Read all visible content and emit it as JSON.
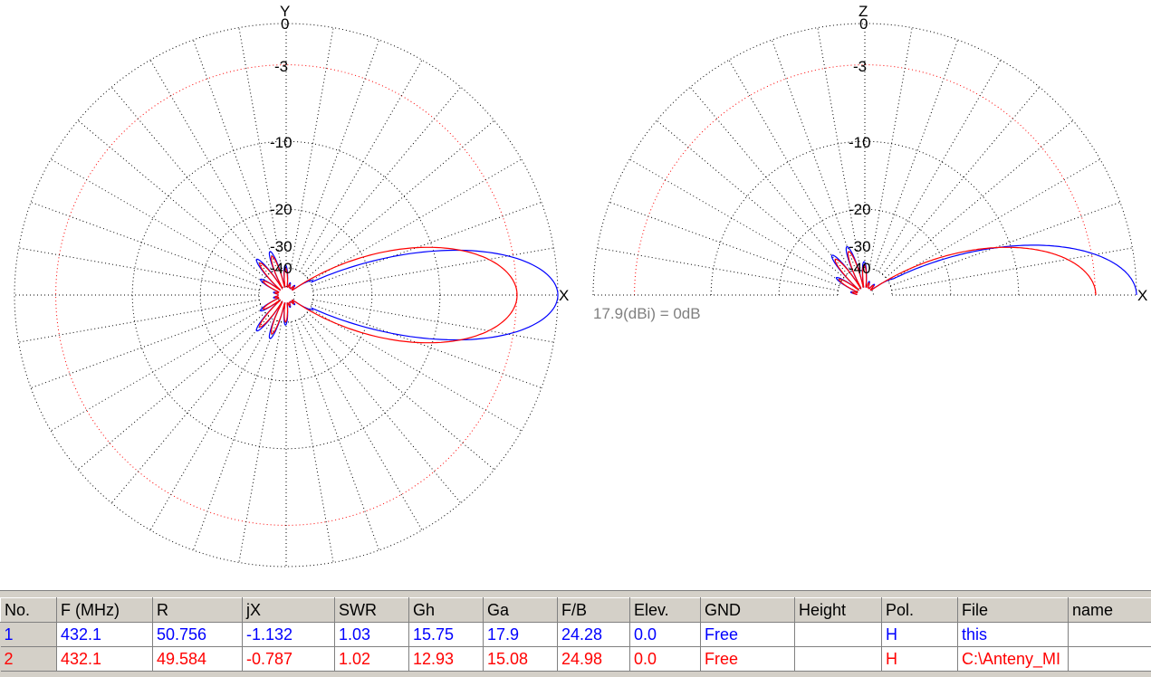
{
  "plots": {
    "azimuth": {
      "axis_top": "Y",
      "axis_right": "X"
    },
    "elevation": {
      "axis_top": "Z",
      "axis_right": "X"
    },
    "ring_labels": [
      "0",
      "-3",
      "-10",
      "-20",
      "-30",
      "-40"
    ],
    "gain_reference": "17.9(dBi) = 0dB"
  },
  "colors": {
    "series1": "#0000ff",
    "series2": "#ff0000",
    "grid": "#000000",
    "grid_3db": "#ff0000"
  },
  "table": {
    "headers": [
      "No.",
      "F (MHz)",
      "R",
      "jX",
      "SWR",
      "Gh",
      "Ga",
      "F/B",
      "Elev.",
      "GND",
      "Height",
      "Pol.",
      "File",
      "name"
    ],
    "rows": [
      {
        "color": "#0000ff",
        "cells": [
          "1",
          "432.1",
          "50.756",
          "-1.132",
          "1.03",
          "15.75",
          "17.9",
          "24.28",
          "0.0",
          "Free",
          "",
          "H",
          "this",
          ""
        ]
      },
      {
        "color": "#ff0000",
        "cells": [
          "2",
          "432.1",
          "49.584",
          "-0.787",
          "1.02",
          "12.93",
          "15.08",
          "24.98",
          "0.0",
          "Free",
          "",
          "H",
          "C:\\Anteny_MI",
          ""
        ]
      }
    ]
  }
}
